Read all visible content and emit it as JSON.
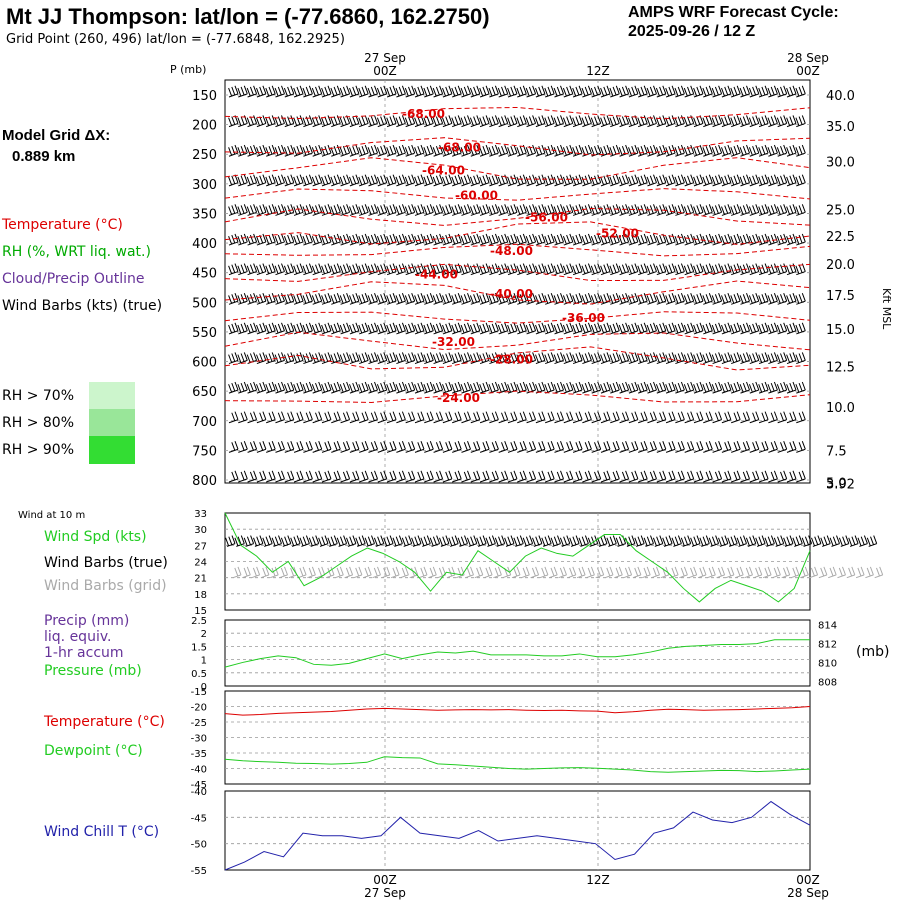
{
  "header": {
    "title": "Mt JJ Thompson:  lat/lon = (-77.6860, 162.2750)",
    "grid_point": "Grid Point (260, 496) lat/lon = (-77.6848, 162.2925)",
    "cycle_title": "AMPS WRF Forecast Cycle:",
    "cycle_value": "2025-09-26 / 12  Z"
  },
  "model_grid": {
    "label": "Model Grid ΔX:",
    "value": "0.889 km"
  },
  "legend": {
    "temperature": "Temperature (°C)",
    "rh": "RH (%, WRT liq. wat.)",
    "cloud": "Cloud/Precip Outline",
    "wind_barbs": "Wind Barbs (kts) (true)",
    "rh70": "RH > 70%",
    "rh80": "RH > 80%",
    "rh90": "RH > 90%"
  },
  "colors": {
    "temperature": "#dd0000",
    "rh": "#00aa00",
    "cloud": "#663399",
    "green_line": "#22cc22",
    "blue_line": "#2222aa",
    "rh70": "#ccf5cc",
    "rh80": "#99e699",
    "rh90": "#33dd33",
    "barb_grey": "#aaaaaa"
  },
  "time_axis": {
    "ticks": [
      {
        "date": "27 Sep",
        "hour": "00Z"
      },
      {
        "date": "",
        "hour": "12Z"
      },
      {
        "date": "28 Sep",
        "hour": "00Z"
      }
    ]
  },
  "chart_data": [
    {
      "type": "line",
      "panel": "upper-air cross section",
      "ylabel": "P (mb)",
      "ylabel_right": "Kft MSL",
      "pressure_levels": [
        150,
        200,
        250,
        300,
        350,
        400,
        450,
        500,
        550,
        600,
        650,
        700,
        750,
        800
      ],
      "height_ticks": [
        {
          "label": "40.0",
          "p": 150
        },
        {
          "label": "35.0",
          "p": 202
        },
        {
          "label": "30.0",
          "p": 262
        },
        {
          "label": "25.0",
          "p": 343
        },
        {
          "label": "22.5",
          "p": 388
        },
        {
          "label": "20.0",
          "p": 435
        },
        {
          "label": "17.5",
          "p": 488
        },
        {
          "label": "15.0",
          "p": 545
        },
        {
          "label": "12.5",
          "p": 608
        },
        {
          "label": "10.0",
          "p": 677
        },
        {
          "label": "7.5",
          "p": 750
        },
        {
          "label": "5.0",
          "p": 804
        },
        {
          "label": "3.92",
          "p": 804
        }
      ],
      "temperature_contours": [
        {
          "label": "-68.00",
          "p": 180
        },
        {
          "label": "-68.00",
          "p": 237
        },
        {
          "label": "-64.00",
          "p": 276
        },
        {
          "label": "-60.00",
          "p": 318
        },
        {
          "label": "-56.00",
          "p": 355
        },
        {
          "label": "-52.00",
          "p": 382
        },
        {
          "label": "-48.00",
          "p": 412
        },
        {
          "label": "-44.00",
          "p": 451
        },
        {
          "label": "-40.00",
          "p": 484
        },
        {
          "label": "-36.00",
          "p": 525
        },
        {
          "label": "-32.00",
          "p": 565
        },
        {
          "label": "-28.00",
          "p": 595
        },
        {
          "label": "-24.00",
          "p": 660
        }
      ]
    },
    {
      "type": "line",
      "panel": "10 m wind",
      "title": "Wind at 10 m",
      "yticks": [
        15,
        18,
        21,
        24,
        27,
        30,
        33
      ],
      "ylim": [
        15,
        33
      ],
      "series": [
        {
          "name": "Wind Spd (kts)",
          "values": [
            33,
            27,
            25,
            22,
            24,
            19.5,
            21,
            23,
            25,
            26.5,
            25.5,
            24,
            22,
            18.5,
            22,
            21.5,
            26,
            24,
            22,
            25,
            26.5,
            25.5,
            25,
            27,
            29,
            29,
            26,
            24,
            22,
            19,
            16.5,
            19,
            20.5,
            19.5,
            18.5,
            16.5,
            19,
            26
          ]
        },
        {
          "name": "Wind Barbs (true)",
          "values": []
        },
        {
          "name": "Wind Barbs (grid)",
          "values": []
        }
      ]
    },
    {
      "type": "line",
      "panel": "precip and pressure",
      "yticks_left": [
        0.0,
        0.5,
        1.0,
        1.5,
        2.0,
        2.5
      ],
      "ylim_left": [
        0,
        2.5
      ],
      "yticks_right": [
        808,
        810,
        812,
        814
      ],
      "ylim_right": [
        807.5,
        814.5
      ],
      "ylabel_right": "(mb)",
      "series": [
        {
          "name": "Precip (mm) liq. equiv. 1-hr accum",
          "values": []
        },
        {
          "name": "Pressure (mb)",
          "values": [
            809.5,
            810.0,
            810.4,
            810.7,
            810.5,
            809.8,
            809.7,
            809.9,
            810.4,
            810.9,
            810.4,
            810.8,
            811.1,
            811.0,
            811.2,
            810.8,
            810.8,
            810.8,
            810.7,
            810.7,
            810.9,
            810.6,
            810.6,
            810.8,
            811.1,
            811.5,
            811.7,
            811.8,
            811.9,
            811.9,
            812.0,
            812.4,
            812.4,
            812.4
          ]
        }
      ]
    },
    {
      "type": "line",
      "panel": "temperature and dewpoint",
      "yticks": [
        -45,
        -40,
        -35,
        -30,
        -25,
        -20,
        -15
      ],
      "ylim": [
        -45,
        -15
      ],
      "series": [
        {
          "name": "Temperature (°C)",
          "values": [
            -22.3,
            -22.8,
            -22.6,
            -22.2,
            -22.0,
            -21.8,
            -21.6,
            -21.2,
            -20.8,
            -20.6,
            -20.8,
            -21.0,
            -21.2,
            -21.1,
            -21.0,
            -21.1,
            -21.0,
            -21.2,
            -21.3,
            -21.2,
            -21.4,
            -21.5,
            -22.0,
            -21.7,
            -21.2,
            -20.9,
            -21.0,
            -21.2,
            -21.1,
            -21.0,
            -20.8,
            -20.6,
            -20.4,
            -20.0
          ]
        },
        {
          "name": "Dewpoint (°C)",
          "values": [
            -37.0,
            -37.5,
            -37.8,
            -38.0,
            -38.3,
            -38.4,
            -38.6,
            -38.4,
            -38.0,
            -36.2,
            -36.5,
            -36.6,
            -38.5,
            -38.8,
            -39.2,
            -39.6,
            -40.0,
            -40.2,
            -40.0,
            -39.8,
            -39.7,
            -39.9,
            -40.2,
            -40.5,
            -41.0,
            -41.2,
            -41.0,
            -40.8,
            -40.6,
            -40.7,
            -41.0,
            -40.8,
            -40.5,
            -40.2
          ]
        }
      ]
    },
    {
      "type": "line",
      "panel": "wind chill",
      "yticks": [
        -55,
        -50,
        -45,
        -40
      ],
      "ylim": [
        -55,
        -40
      ],
      "series": [
        {
          "name": "Wind Chill T (°C)",
          "values": [
            -55,
            -53.5,
            -51.5,
            -52.5,
            -48.0,
            -48.5,
            -48.5,
            -49.0,
            -48.5,
            -45.0,
            -48.0,
            -48.5,
            -49.0,
            -47.5,
            -49.5,
            -49.0,
            -48.5,
            -49.0,
            -49.5,
            -50.0,
            -53.0,
            -52.0,
            -48.0,
            -47.0,
            -44.0,
            -45.5,
            -46.0,
            -45.0,
            -42.0,
            -44.5,
            -46.5
          ]
        }
      ]
    }
  ],
  "panel_labels": {
    "wind10m": "Wind at 10 m",
    "precip1": "Precip (mm)",
    "precip2": "liq. equiv.",
    "precip3": "1-hr accum",
    "pressure": "Pressure (mb)",
    "temperature": "Temperature (°C)",
    "dewpoint": "Dewpoint (°C)",
    "windchill": "Wind Chill T (°C)"
  }
}
